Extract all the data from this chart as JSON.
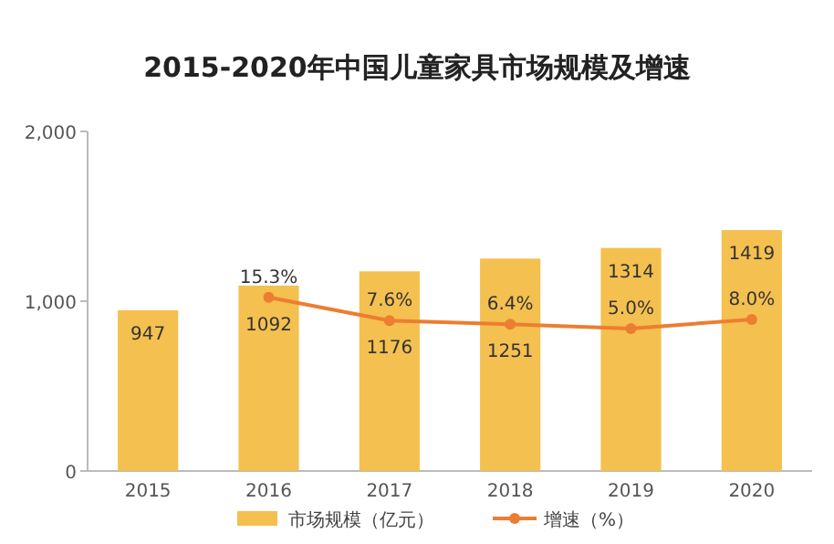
{
  "chart_data": {
    "type": "bar",
    "title": "2015-2020年中国儿童家具市场规模及增速",
    "categories": [
      "2015",
      "2016",
      "2017",
      "2018",
      "2019",
      "2020"
    ],
    "series": [
      {
        "name": "市场规模（亿元）",
        "type": "bar",
        "color": "#f4c04f",
        "values": [
          947,
          1092,
          1176,
          1251,
          1314,
          1419
        ],
        "value_labels": [
          "947",
          "1092",
          "1176",
          "1251",
          "1314",
          "1419"
        ]
      },
      {
        "name": "增速（%）",
        "type": "line",
        "axis": "y2",
        "color": "#ed7d31",
        "values": [
          null,
          15.3,
          7.6,
          6.4,
          5.0,
          8.0
        ],
        "value_labels": [
          null,
          "15.3%",
          "7.6%",
          "6.4%",
          "5.0%",
          "8.0%"
        ]
      }
    ],
    "ylim": [
      0,
      2000
    ],
    "yticks": [
      {
        "value": 0,
        "label": "0"
      },
      {
        "value": 1000,
        "label": "1,000"
      },
      {
        "value": 2000,
        "label": "2,000"
      }
    ],
    "y2lim": [
      -42,
      70
    ],
    "marker": "circle",
    "legend": "bottom",
    "grid": false
  }
}
